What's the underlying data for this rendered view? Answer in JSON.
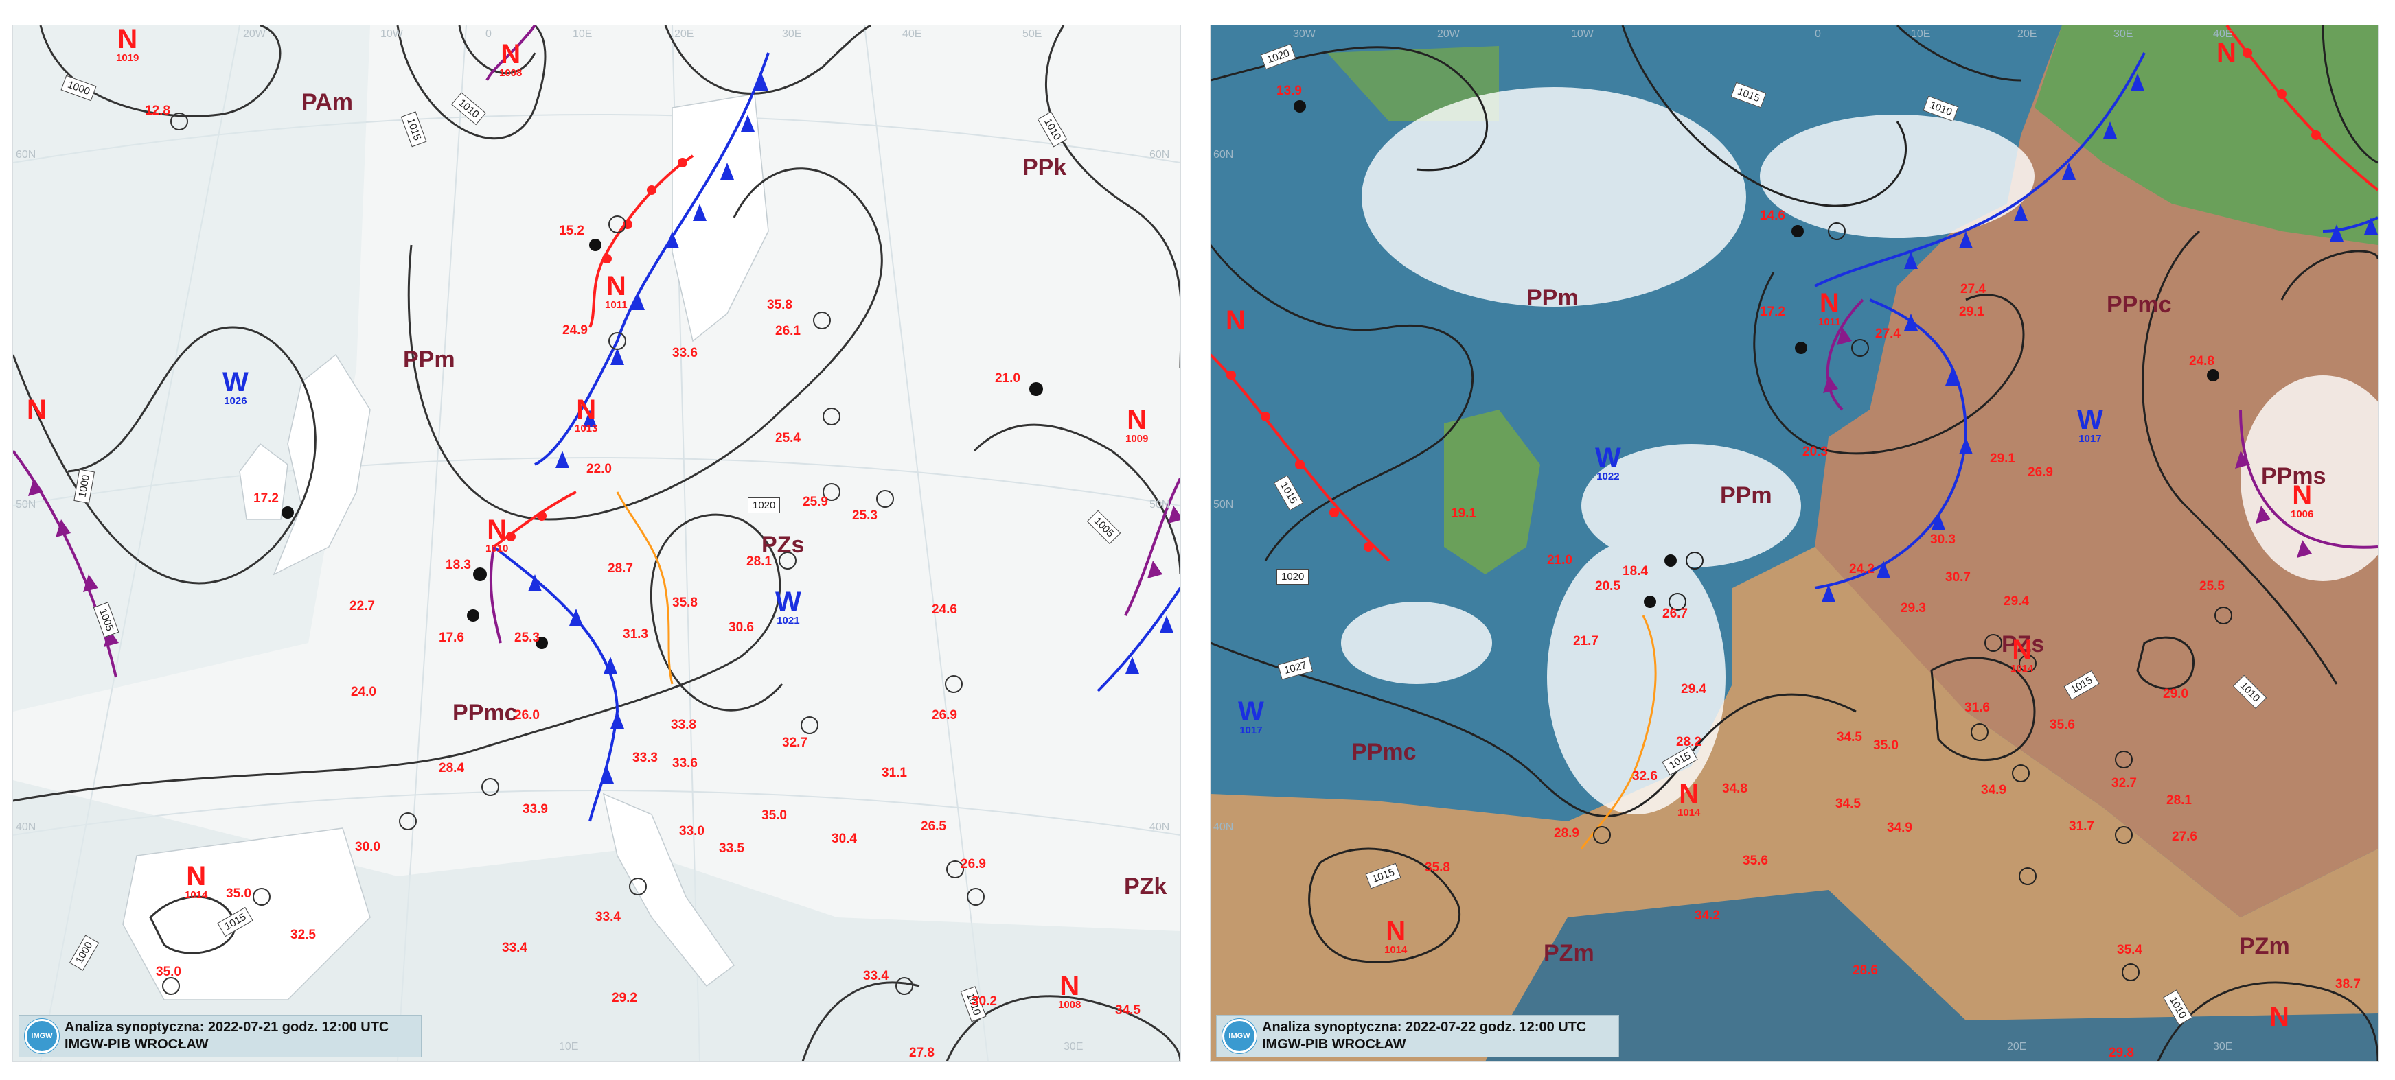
{
  "left": {
    "footer": {
      "line1": "Analiza synoptyczna: 2022-07-21 godz. 12:00 UTC",
      "line2": "IMGW-PIB WROCŁAW"
    },
    "air_masses": [
      "PAm",
      "PPm",
      "PPk",
      "PPmc",
      "PZs",
      "PZk"
    ],
    "lows": [
      {
        "code": "N",
        "value": "1019"
      },
      {
        "code": "N",
        "value": "1008"
      },
      {
        "code": "N",
        "value": "1011"
      },
      {
        "code": "N",
        "value": "1013"
      },
      {
        "code": "N",
        "value": "1010"
      },
      {
        "code": "N",
        "value": ""
      },
      {
        "code": "N",
        "value": "1009"
      },
      {
        "code": "N",
        "value": "1014"
      },
      {
        "code": "N",
        "value": "1008"
      }
    ],
    "highs": [
      {
        "code": "W",
        "value": "1026"
      },
      {
        "code": "W",
        "value": "1021"
      }
    ],
    "isobars": [
      "1000",
      "1015",
      "1010",
      "1010",
      "1020",
      "1000",
      "1005",
      "1005",
      "1015",
      "1000",
      "1010"
    ],
    "grid_labels": [
      "20W",
      "10W",
      "0",
      "10E",
      "20E",
      "30E",
      "40E",
      "50E",
      "60N",
      "60N",
      "50N",
      "50N",
      "40N",
      "40N",
      "10E",
      "30E"
    ],
    "temps": [
      "12.8",
      "15.2",
      "24.9",
      "33.6",
      "35.8",
      "26.1",
      "25.4",
      "25.9",
      "25.3",
      "21.0",
      "17.2",
      "22.0",
      "28.7",
      "28.1",
      "18.3",
      "17.6",
      "25.3",
      "31.3",
      "35.8",
      "30.6",
      "22.7",
      "24.0",
      "26.0",
      "33.8",
      "24.6",
      "26.9",
      "28.4",
      "33.9",
      "33.3",
      "33.6",
      "32.7",
      "31.1",
      "30.0",
      "33.0",
      "33.5",
      "35.0",
      "30.4",
      "26.5",
      "26.9",
      "35.0",
      "32.5",
      "35.0",
      "33.4",
      "33.4",
      "29.2",
      "33.4",
      "30.2",
      "34.5",
      "27.8"
    ]
  },
  "right": {
    "footer": {
      "line1": "Analiza synoptyczna: 2022-07-22 godz. 12:00 UTC",
      "line2": "IMGW-PIB WROCŁAW"
    },
    "air_masses": [
      "PPm",
      "PPm",
      "PPmc",
      "PPms",
      "PZs",
      "PPmc",
      "PZm",
      "PZm"
    ],
    "lows": [
      {
        "code": "N",
        "value": ""
      },
      {
        "code": "N",
        "value": ""
      },
      {
        "code": "N",
        "value": "1011"
      },
      {
        "code": "N",
        "value": "1006"
      },
      {
        "code": "N",
        "value": "1014"
      },
      {
        "code": "N",
        "value": "1014"
      },
      {
        "code": "N",
        "value": "1014"
      },
      {
        "code": "N",
        "value": ""
      }
    ],
    "highs": [
      {
        "code": "W",
        "value": "1022"
      },
      {
        "code": "W",
        "value": "1017"
      },
      {
        "code": "W",
        "value": "1017"
      }
    ],
    "isobars": [
      "1020",
      "1015",
      "1010",
      "1015",
      "1020",
      "1027",
      "1015",
      "1015",
      "1015",
      "1010",
      "1010"
    ],
    "grid_labels": [
      "30W",
      "20W",
      "10W",
      "0",
      "10E",
      "20E",
      "30E",
      "40E",
      "60N",
      "50N",
      "40N",
      "20E",
      "30E"
    ],
    "temps": [
      "13.9",
      "14.6",
      "17.2",
      "27.4",
      "29.1",
      "27.4",
      "24.8",
      "20.3",
      "29.1",
      "26.9",
      "19.1",
      "21.0",
      "20.5",
      "18.4",
      "26.7",
      "24.2",
      "30.3",
      "30.7",
      "29.4",
      "29.3",
      "25.5",
      "21.7",
      "29.4",
      "31.6",
      "35.6",
      "29.0",
      "28.2",
      "34.5",
      "35.0",
      "32.6",
      "34.8",
      "34.9",
      "32.7",
      "28.9",
      "34.5",
      "34.9",
      "31.7",
      "28.1",
      "27.6",
      "35.8",
      "35.6",
      "34.2",
      "28.6",
      "35.4",
      "38.7",
      "29.8"
    ]
  }
}
